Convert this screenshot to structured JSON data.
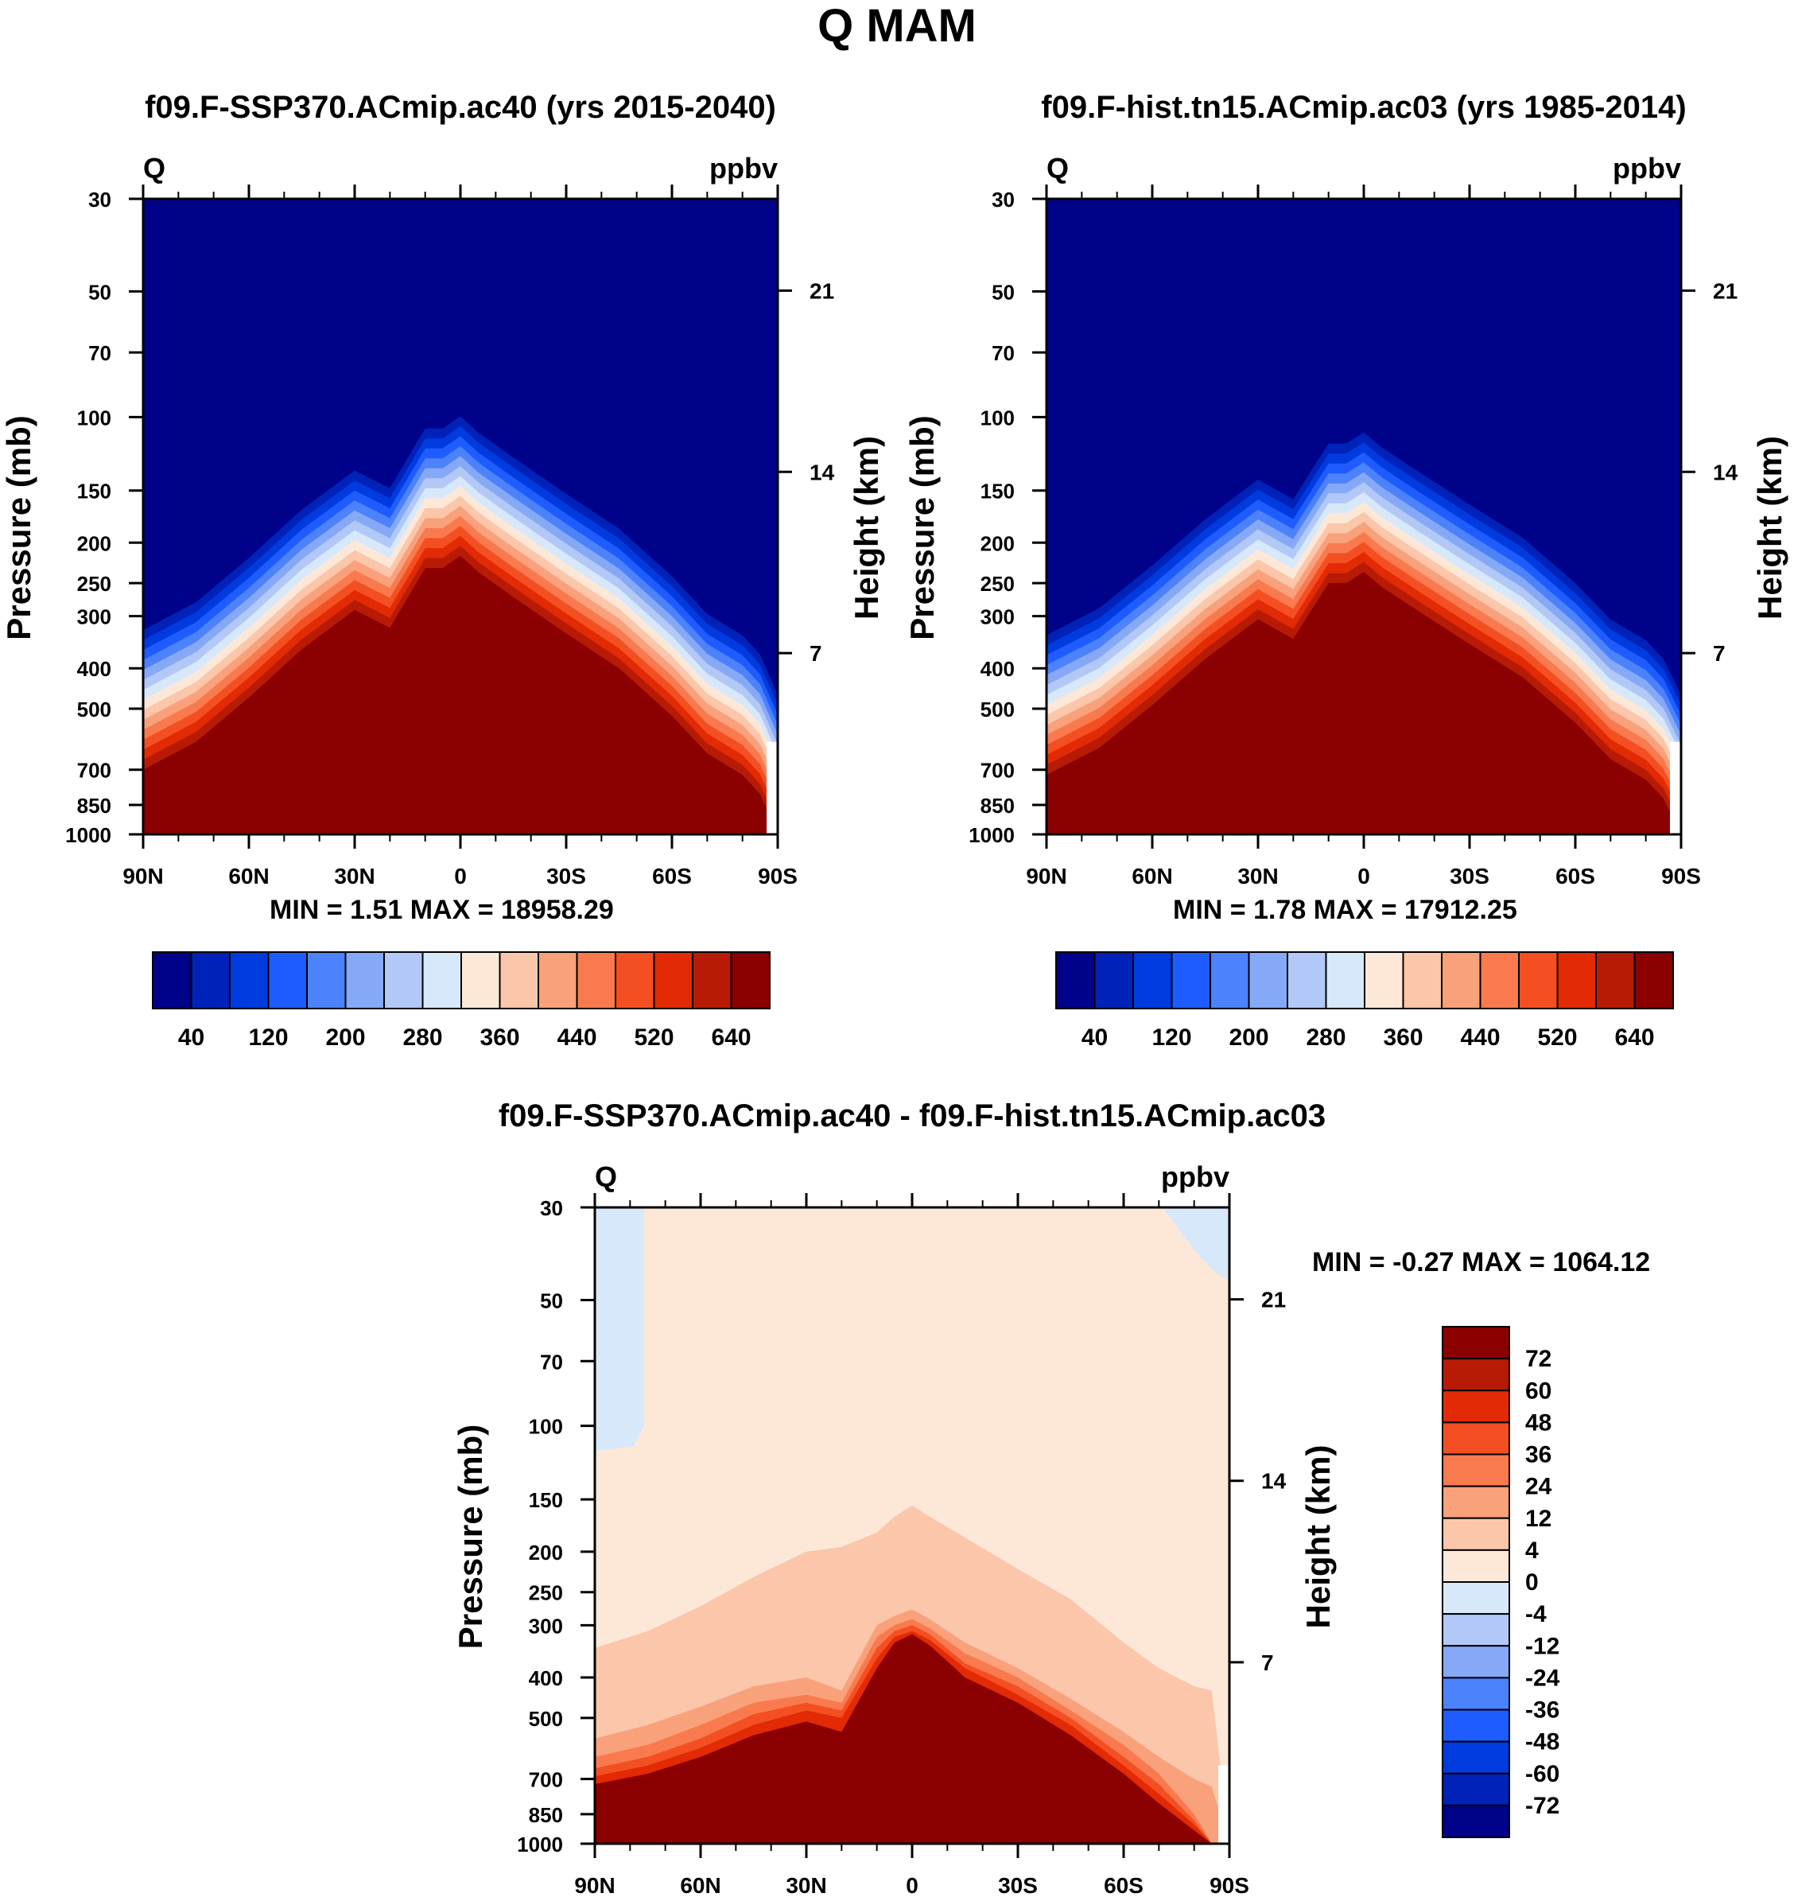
{
  "figure": {
    "title": "Q MAM"
  },
  "palettes": {
    "absolute": [
      "#00038a",
      "#0022b8",
      "#003be0",
      "#1f5cff",
      "#4c82fb",
      "#86a9f7",
      "#b2c8f7",
      "#d8e8fb",
      "#fde8d8",
      "#fbc6aa",
      "#f9a17b",
      "#f97a4e",
      "#f44f22",
      "#e22a05",
      "#b71b06",
      "#8b0000"
    ],
    "difference": [
      "#00038a",
      "#0022b8",
      "#003be0",
      "#1f5cff",
      "#4c82fb",
      "#86a9f7",
      "#b2c8f7",
      "#d8e8fb",
      "#fde8d8",
      "#fbc6aa",
      "#f9a17b",
      "#f97a4e",
      "#f44f22",
      "#e22a05",
      "#b71b06",
      "#8b0000"
    ]
  },
  "chart_data": [
    {
      "type": "heatmap",
      "id": "ssp",
      "title": "f09.F-SSP370.ACmip.ac40 (yrs 2015-2040)",
      "variable": "Q",
      "units": "ppbv",
      "ylabel": "Pressure (mb)",
      "y2label": "Height (km)",
      "x_ticks": [
        "90N",
        "60N",
        "30N",
        "0",
        "30S",
        "60S",
        "90S"
      ],
      "y_ticks": [
        30,
        50,
        70,
        100,
        150,
        200,
        250,
        300,
        400,
        500,
        700,
        850,
        1000
      ],
      "y2_ticks": [
        21,
        14,
        7
      ],
      "stats": {
        "min_label": "MIN =",
        "min": "1.51",
        "max_label": "MAX =",
        "max": "18958.29"
      },
      "colorbar_labels": [
        "40",
        "120",
        "200",
        "280",
        "360",
        "440",
        "520",
        "640"
      ],
      "lat": [
        90,
        75,
        60,
        45,
        30,
        20,
        10,
        5,
        0,
        -5,
        -15,
        -30,
        -45,
        -60,
        -70,
        -80,
        -85,
        -90
      ],
      "contour_top_mb": [
        700,
        600,
        470,
        360,
        290,
        320,
        230,
        230,
        215,
        235,
        270,
        330,
        400,
        520,
        640,
        720,
        800,
        1000
      ],
      "band_step_factor": 0.83
    },
    {
      "type": "heatmap",
      "id": "hist",
      "title": "f09.F-hist.tn15.ACmip.ac03 (yrs 1985-2014)",
      "variable": "Q",
      "units": "ppbv",
      "ylabel": "Pressure (mb)",
      "y2label": "Height (km)",
      "x_ticks": [
        "90N",
        "60N",
        "30N",
        "0",
        "30S",
        "60S",
        "90S"
      ],
      "y_ticks": [
        30,
        50,
        70,
        100,
        150,
        200,
        250,
        300,
        400,
        500,
        700,
        850,
        1000
      ],
      "y2_ticks": [
        21,
        14,
        7
      ],
      "stats": {
        "min_label": "MIN =",
        "min": "1.78",
        "max_label": "MAX =",
        "max": "17912.25"
      },
      "colorbar_labels": [
        "40",
        "120",
        "200",
        "280",
        "360",
        "440",
        "520",
        "640"
      ],
      "lat": [
        90,
        75,
        60,
        45,
        30,
        20,
        10,
        5,
        0,
        -5,
        -15,
        -30,
        -45,
        -60,
        -70,
        -80,
        -85,
        -90
      ],
      "contour_top_mb": [
        720,
        620,
        490,
        380,
        305,
        340,
        250,
        250,
        235,
        255,
        290,
        350,
        420,
        540,
        660,
        740,
        820,
        1000
      ],
      "band_step_factor": 0.83
    },
    {
      "type": "heatmap",
      "id": "diff",
      "title": "f09.F-SSP370.ACmip.ac40 - f09.F-hist.tn15.ACmip.ac03",
      "variable": "Q",
      "units": "ppbv",
      "ylabel": "Pressure (mb)",
      "y2label": "Height (km)",
      "x_ticks": [
        "90N",
        "60N",
        "30N",
        "0",
        "30S",
        "60S",
        "90S"
      ],
      "y_ticks": [
        30,
        50,
        70,
        100,
        150,
        200,
        250,
        300,
        400,
        500,
        700,
        850,
        1000
      ],
      "y2_ticks": [
        21,
        14,
        7
      ],
      "stats": {
        "min_label": "MIN =",
        "min": "-0.27",
        "max_label": "MAX =",
        "max": "1064.12"
      },
      "colorbar_labels": [
        "72",
        "60",
        "48",
        "36",
        "24",
        "12",
        "4",
        "0",
        "-4",
        "-12",
        "-24",
        "-36",
        "-48",
        "-60",
        "-72"
      ],
      "lat": [
        90,
        75,
        60,
        45,
        30,
        20,
        10,
        5,
        0,
        -5,
        -15,
        -30,
        -45,
        -60,
        -70,
        -80,
        -85,
        -90
      ],
      "contours": [
        {
          "color_index": 9,
          "top_mb": [
            340,
            310,
            270,
            230,
            200,
            195,
            180,
            165,
            155,
            165,
            185,
            220,
            260,
            330,
            380,
            420,
            430,
            1000
          ]
        },
        {
          "color_index": 10,
          "top_mb": [
            560,
            520,
            470,
            420,
            400,
            430,
            300,
            285,
            275,
            290,
            330,
            380,
            450,
            540,
            620,
            700,
            730,
            1000
          ]
        },
        {
          "color_index": 11,
          "top_mb": [
            620,
            580,
            520,
            460,
            440,
            460,
            320,
            300,
            290,
            305,
            350,
            400,
            480,
            580,
            680,
            850,
            1000,
            1000
          ]
        },
        {
          "color_index": 12,
          "top_mb": [
            660,
            620,
            560,
            490,
            460,
            480,
            340,
            310,
            300,
            315,
            370,
            420,
            500,
            620,
            720,
            880,
            1000,
            1000
          ]
        },
        {
          "color_index": 13,
          "top_mb": [
            690,
            650,
            590,
            520,
            480,
            500,
            360,
            320,
            310,
            325,
            380,
            440,
            520,
            650,
            760,
            900,
            1000,
            1000
          ]
        },
        {
          "color_index": 15,
          "top_mb": [
            720,
            680,
            620,
            550,
            510,
            540,
            380,
            330,
            315,
            335,
            400,
            460,
            550,
            680,
            800,
            930,
            1000,
            1000
          ]
        }
      ],
      "negative_regions": [
        {
          "color_index": 7,
          "lat": [
            90,
            76,
            76,
            79,
            90
          ],
          "top_mb": [
            30,
            30,
            100,
            112,
            115
          ]
        },
        {
          "color_index": 7,
          "lat": [
            -71,
            -90,
            -90,
            -86,
            -80
          ],
          "top_mb": [
            30,
            30,
            45,
            43,
            38
          ]
        }
      ]
    }
  ]
}
